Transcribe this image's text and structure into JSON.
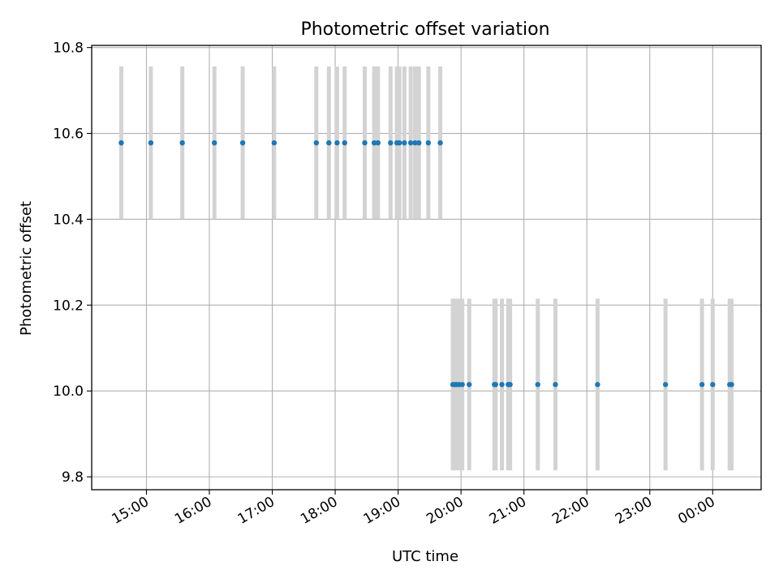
{
  "chart_data": {
    "type": "scatter",
    "title": "Photometric offset variation",
    "xlabel": "UTC time",
    "ylabel": "Photometric offset",
    "x_tick_labels": [
      "15:00",
      "16:00",
      "17:00",
      "18:00",
      "19:00",
      "20:00",
      "21:00",
      "22:00",
      "23:00",
      "00:00"
    ],
    "x_ticks_hours": [
      15,
      16,
      17,
      18,
      19,
      20,
      21,
      22,
      23,
      24
    ],
    "xlim_hours": [
      14.13,
      24.77
    ],
    "ylim": [
      9.77,
      10.805
    ],
    "y_ticks": [
      9.8,
      10.0,
      10.2,
      10.4,
      10.6,
      10.8
    ],
    "y_tick_labels": [
      "9.8",
      "10.0",
      "10.2",
      "10.4",
      "10.6",
      "10.8"
    ],
    "grid": true,
    "colors": {
      "points": "#1f77b4",
      "errorbars": "#d3d3d3",
      "grid": "#b0b0b0"
    },
    "series": [
      {
        "y": 10.578,
        "yerr": 0.178,
        "x_hours": [
          14.6,
          15.07,
          15.57,
          16.08,
          16.53,
          17.03,
          17.7,
          17.9,
          18.03,
          18.15,
          18.47,
          18.62,
          18.68,
          18.88,
          18.98,
          19.02,
          19.1,
          19.2,
          19.27,
          19.33,
          19.48,
          19.67
        ]
      },
      {
        "y": 10.015,
        "yerr": 0.2,
        "x_hours": [
          19.87,
          19.9,
          19.93,
          19.97,
          20.02,
          20.13,
          20.53,
          20.55,
          20.65,
          20.75,
          20.78,
          21.22,
          21.5,
          22.17,
          23.25,
          23.83,
          24.0,
          24.27,
          24.3
        ]
      }
    ]
  }
}
